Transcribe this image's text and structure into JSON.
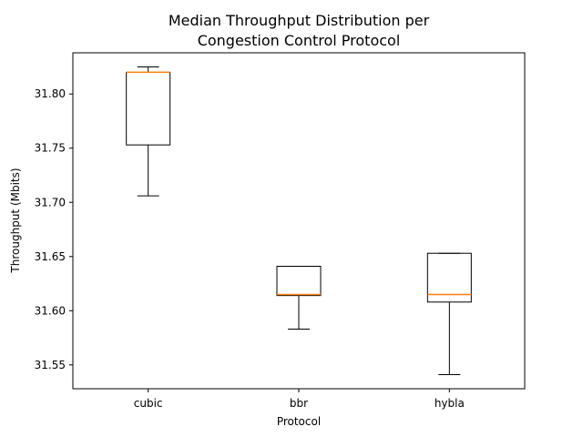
{
  "chart_data": {
    "type": "box",
    "title_lines": [
      "Median Throughput Distribution per",
      "Congestion Control Protocol"
    ],
    "xlabel": "Protocol",
    "ylabel": "Throughput (Mbits)",
    "ylim": [
      31.528,
      31.838
    ],
    "yticks": [
      31.55,
      31.6,
      31.65,
      31.7,
      31.75,
      31.8
    ],
    "ytick_labels": [
      "31.55",
      "31.60",
      "31.65",
      "31.70",
      "31.75",
      "31.80"
    ],
    "categories": [
      "cubic",
      "bbr",
      "hybla"
    ],
    "boxes": [
      {
        "name": "cubic",
        "whislo": 31.706,
        "q1": 31.753,
        "med": 31.82,
        "q3": 31.82,
        "whishi": 31.825
      },
      {
        "name": "bbr",
        "whislo": 31.583,
        "q1": 31.614,
        "med": 31.615,
        "q3": 31.641,
        "whishi": 31.641
      },
      {
        "name": "hybla",
        "whislo": 31.541,
        "q1": 31.608,
        "med": 31.615,
        "q3": 31.653,
        "whishi": 31.653
      }
    ],
    "grid": false,
    "colors": {
      "box": "#000000",
      "median": "#ff7f0e",
      "background": "#ffffff"
    }
  }
}
